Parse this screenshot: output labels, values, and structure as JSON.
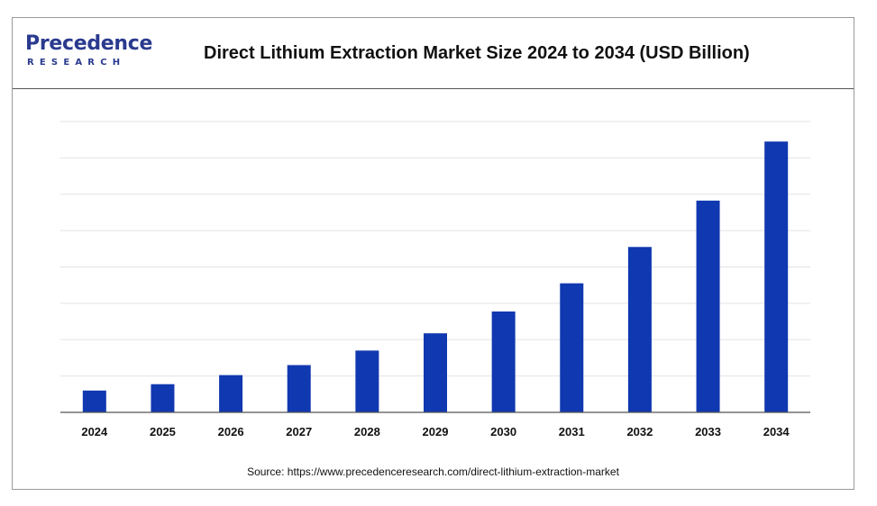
{
  "header": {
    "logo_main": "Precedence",
    "logo_sub": "RESEARCH",
    "title": "Direct Lithium Extraction Market Size 2024 to 2034 (USD Billion)"
  },
  "footer": {
    "source": "Source: https://www.precedenceresearch.com/direct-lithium-extraction-market"
  },
  "colors": {
    "bar": "#1038b0",
    "grid": "#e3e3e3",
    "axis": "#555555",
    "logo": "#2a3a8e"
  },
  "chart_data": {
    "type": "bar",
    "title": "Direct Lithium Extraction Market Size 2024 to 2034 (USD Billion)",
    "xlabel": "",
    "ylabel": "",
    "categories": [
      "2024",
      "2025",
      "2026",
      "2027",
      "2028",
      "2029",
      "2030",
      "2031",
      "2032",
      "2033",
      "2034"
    ],
    "values": [
      1.2,
      1.55,
      2.05,
      2.6,
      3.4,
      4.35,
      5.55,
      7.1,
      9.1,
      11.65,
      14.9
    ],
    "ylim": [
      0,
      16
    ],
    "grid": true,
    "y_tick_labels_shown": false,
    "legend": "none"
  }
}
